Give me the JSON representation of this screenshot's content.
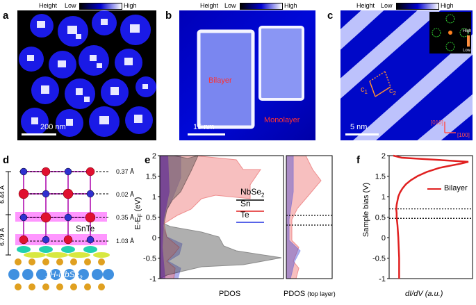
{
  "panels": {
    "a": {
      "letter": "a",
      "cbar_title": "Height",
      "cbar_low": "Low",
      "cbar_high": "High",
      "scale": "200 nm"
    },
    "b": {
      "letter": "b",
      "cbar_title": "Height",
      "cbar_low": "Low",
      "cbar_high": "High",
      "scale": "15 nm",
      "label_bilayer": "Bilayer",
      "label_monolayer": "Monolayer"
    },
    "c": {
      "letter": "c",
      "cbar_title": "Height",
      "cbar_low": "Low",
      "cbar_high": "High",
      "scale": "5 nm",
      "c1": "c",
      "c1_sub": "1",
      "c2": "c",
      "c2_sub": "2",
      "inset_high": "High",
      "inset_low": "Low",
      "dir1": "[010]",
      "dir2": "[100]"
    },
    "d": {
      "letter": "d",
      "dist1": "6.44 Å",
      "dist2": "6.79 Å",
      "r1": "0.37 Å",
      "r2": "0.02 Å",
      "r3": "0.35 Å",
      "r4": "1.03 Å",
      "label_snte": "SnTe",
      "label_nbse": "1H-NbSe",
      "label_nbse_sub": "2"
    },
    "e": {
      "letter": "e",
      "ylabel": "E-E",
      "ylabel_sub": "F",
      "ylabel_unit": " (eV)",
      "xlabel": "PDOS",
      "xlabel2": "PDOS",
      "xlabel2_small": "(top layer)",
      "legend": [
        {
          "name": "NbSe",
          "sub": "2",
          "color": "#000000"
        },
        {
          "name": "Sn",
          "sub": "",
          "color": "#e02020"
        },
        {
          "name": "Te",
          "sub": "",
          "color": "#2030e0"
        }
      ]
    },
    "f": {
      "letter": "f",
      "ylabel": "Sample bias (V)",
      "xlabel": "dI/dV (a.u.)",
      "legend": "Bilayer"
    }
  },
  "chart_data": [
    {
      "type": "area",
      "title": "",
      "xlabel": "PDOS",
      "ylabel": "E-EF (eV)",
      "ylim": [
        -1,
        2
      ],
      "yticks": [
        "-1",
        "-0.5",
        "0",
        "0.5",
        "1",
        "1.5",
        "2"
      ],
      "series": [
        {
          "name": "NbSe2"
        },
        {
          "name": "Sn"
        },
        {
          "name": "Te"
        }
      ]
    },
    {
      "type": "line",
      "title": "",
      "xlabel": "dI/dV (a.u.)",
      "ylabel": "Sample bias (V)",
      "ylim": [
        -1,
        2
      ],
      "yticks": [
        "-1",
        "-0.5",
        "0",
        "0.5",
        "1",
        "1.5",
        "2"
      ],
      "series": [
        {
          "name": "Bilayer",
          "y": [
            -1.0,
            -0.5,
            0.0,
            0.3,
            0.5,
            0.6,
            0.7,
            0.8,
            0.9,
            1.0,
            1.1,
            1.2,
            1.3,
            1.4,
            1.5,
            1.6,
            1.7,
            1.75,
            1.8,
            1.85,
            1.9,
            1.95,
            2.0
          ],
          "x": [
            0.12,
            0.12,
            0.11,
            0.1,
            0.09,
            0.09,
            0.085,
            0.09,
            0.1,
            0.11,
            0.13,
            0.16,
            0.2,
            0.26,
            0.34,
            0.45,
            0.6,
            0.72,
            0.85,
            0.95,
            0.55,
            0.15,
            0.05
          ]
        }
      ],
      "dashed_lines": [
        0.7,
        0.47
      ]
    }
  ]
}
